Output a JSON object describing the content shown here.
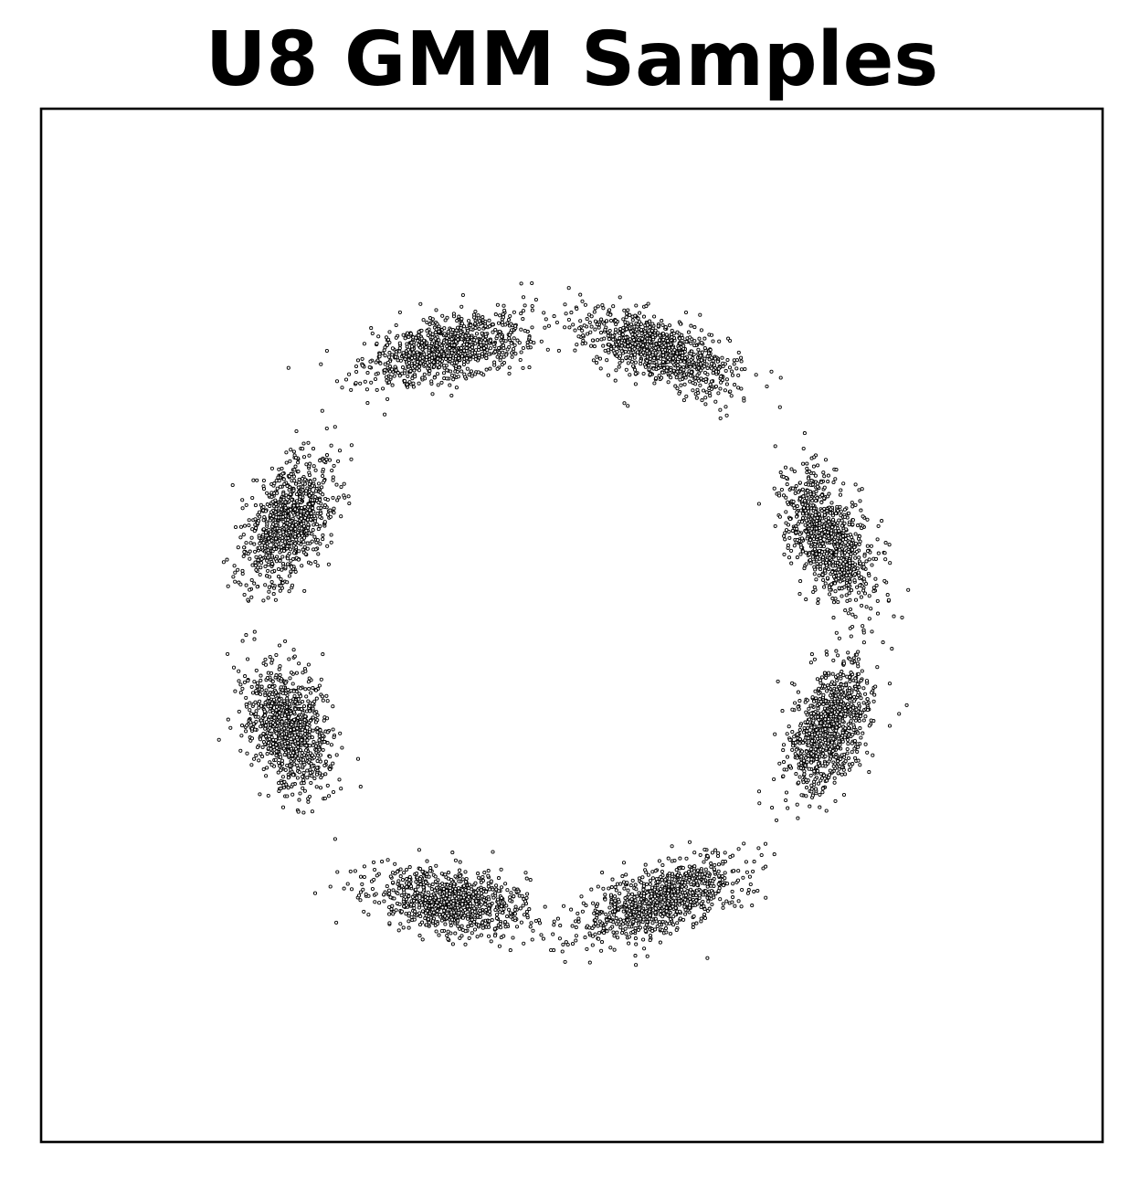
{
  "chart_data": {
    "type": "scatter",
    "title": "U8 GMM Samples",
    "xlabel": "",
    "ylabel": "",
    "xlim": [
      -6,
      6
    ],
    "ylim": [
      -6,
      6
    ],
    "grid": false,
    "ticks": "hidden",
    "marker": {
      "fill": "#ffffff",
      "edge": "#000000"
    },
    "series": [
      {
        "samples_per_component": 900,
        "components": [
          {
            "mean": [
              -1.4,
              3.2
            ],
            "std_major": 0.45,
            "std_minor": 0.18,
            "angle_deg": 15
          },
          {
            "mean": [
              1.0,
              3.2
            ],
            "std_major": 0.45,
            "std_minor": 0.18,
            "angle_deg": -20
          },
          {
            "mean": [
              -3.2,
              1.2
            ],
            "std_major": 0.4,
            "std_minor": 0.2,
            "angle_deg": 65
          },
          {
            "mean": [
              2.9,
              1.0
            ],
            "std_major": 0.4,
            "std_minor": 0.2,
            "angle_deg": -65
          },
          {
            "mean": [
              -3.2,
              -1.2
            ],
            "std_major": 0.38,
            "std_minor": 0.22,
            "angle_deg": -70
          },
          {
            "mean": [
              2.9,
              -1.2
            ],
            "std_major": 0.4,
            "std_minor": 0.2,
            "angle_deg": 70
          },
          {
            "mean": [
              -1.4,
              -3.2
            ],
            "std_major": 0.45,
            "std_minor": 0.18,
            "angle_deg": -10
          },
          {
            "mean": [
              1.0,
              -3.2
            ],
            "std_major": 0.45,
            "std_minor": 0.18,
            "angle_deg": 20
          }
        ]
      }
    ]
  },
  "colors": {
    "frame": "#000000",
    "background": "#ffffff"
  }
}
